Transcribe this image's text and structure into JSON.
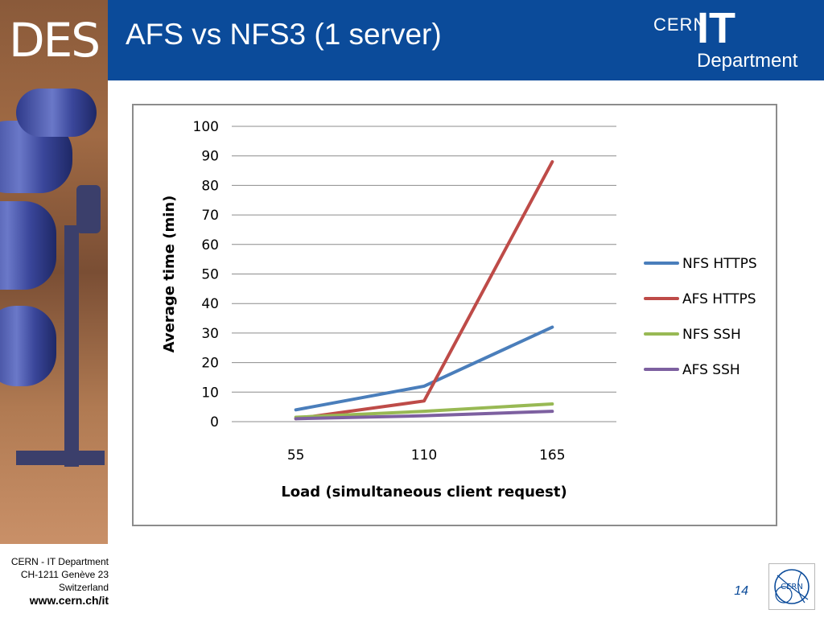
{
  "header": {
    "title": "AFS vs NFS3 (1 server)",
    "side_logo_text": "DES",
    "logo": {
      "cern": "CERN",
      "it": "IT",
      "department": "Department"
    }
  },
  "footer": {
    "line1": "CERN - IT Department",
    "line2": "CH-1211 Genève 23",
    "line3": "Switzerland",
    "url": "www.cern.ch/it",
    "page": "14"
  },
  "colors": {
    "header_bg": "#0b4b9a",
    "nfs_https": "#4a7ebb",
    "afs_https": "#be4b48",
    "nfs_ssh": "#98b954",
    "afs_ssh": "#7d60a0"
  },
  "chart_data": {
    "type": "line",
    "categories": [
      "55",
      "110",
      "165"
    ],
    "series": [
      {
        "name": "NFS HTTPS",
        "values": [
          4,
          12,
          32
        ],
        "color": "#4a7ebb"
      },
      {
        "name": "AFS HTTPS",
        "values": [
          1,
          7,
          88
        ],
        "color": "#be4b48"
      },
      {
        "name": "NFS SSH",
        "values": [
          1.5,
          3.5,
          6
        ],
        "color": "#98b954"
      },
      {
        "name": "AFS SSH",
        "values": [
          1,
          2,
          3.5
        ],
        "color": "#7d60a0"
      }
    ],
    "xlabel": "Load (simultaneous client request)",
    "ylabel": "Average time (min)",
    "ylim": [
      0,
      100
    ],
    "yticks": [
      "0",
      "10",
      "20",
      "30",
      "40",
      "50",
      "60",
      "70",
      "80",
      "90",
      "100"
    ],
    "grid": true,
    "legend": "right"
  }
}
